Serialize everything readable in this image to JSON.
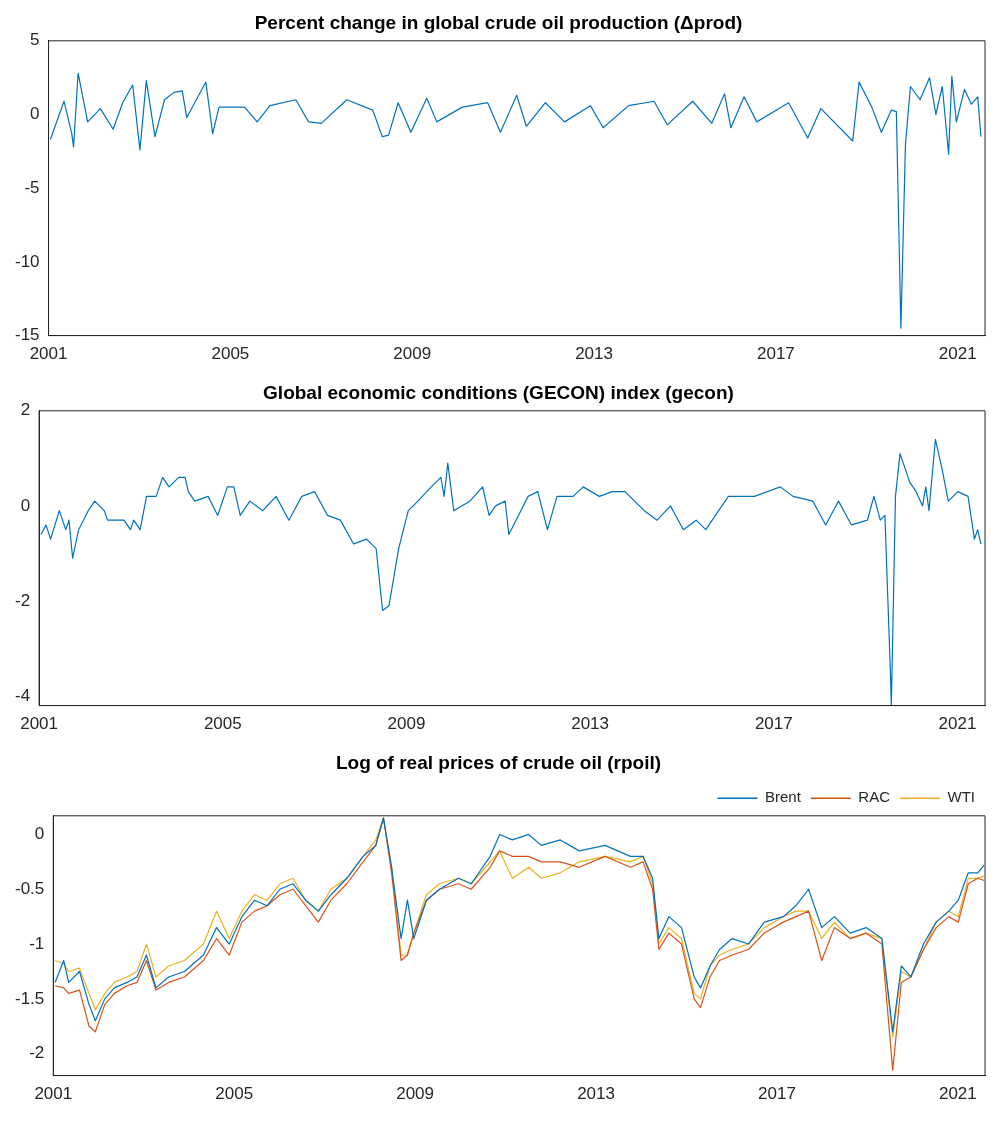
{
  "chart_data": [
    {
      "type": "line",
      "title": "Percent change in global crude oil production (Δprod)",
      "x": [
        2001.04,
        2001.34,
        2001.51,
        2001.55,
        2001.65,
        2001.86,
        2002.14,
        2002.42,
        2002.63,
        2002.85,
        2003.01,
        2003.15,
        2003.34,
        2003.55,
        2003.76,
        2003.94,
        2004.04,
        2004.46,
        2004.61,
        2004.75,
        2005.31,
        2005.59,
        2005.87,
        2006.44,
        2006.72,
        2007.0,
        2007.56,
        2008.13,
        2008.34,
        2008.48,
        2008.69,
        2008.97,
        2009.32,
        2009.54,
        2010.1,
        2010.66,
        2010.94,
        2011.3,
        2011.51,
        2011.93,
        2012.35,
        2012.92,
        2013.2,
        2013.76,
        2014.32,
        2014.61,
        2015.17,
        2015.59,
        2015.87,
        2016.01,
        2016.3,
        2016.58,
        2017.28,
        2017.7,
        2017.99,
        2018.69,
        2018.83,
        2019.11,
        2019.32,
        2019.54,
        2019.65,
        2019.75,
        2019.85,
        2019.96,
        2020.17,
        2020.38,
        2020.52,
        2020.66,
        2020.8,
        2020.87,
        2020.97,
        2021.15,
        2021.3,
        2021.44,
        2021.51
      ],
      "series": [
        {
          "color": "#0072bd",
          "values": [
            -1.7,
            0.9,
            -1.3,
            -2.2,
            2.8,
            -0.5,
            0.4,
            -1.0,
            0.8,
            2.0,
            -2.4,
            2.3,
            -1.5,
            1.0,
            1.5,
            1.6,
            -0.2,
            2.2,
            -1.3,
            0.5,
            0.5,
            -0.5,
            0.6,
            1.0,
            -0.5,
            -0.6,
            1.0,
            0.3,
            -1.5,
            -1.4,
            0.8,
            -1.2,
            1.1,
            -0.5,
            0.5,
            0.8,
            -1.2,
            1.3,
            -0.8,
            0.8,
            -0.5,
            0.6,
            -0.9,
            0.6,
            0.9,
            -0.7,
            0.9,
            -0.6,
            1.4,
            -0.9,
            1.2,
            -0.5,
            0.8,
            -1.6,
            0.4,
            -1.8,
            2.2,
            0.5,
            -1.2,
            0.3,
            0.2,
            -14.5,
            -2.0,
            1.9,
            1.0,
            2.5,
            0.0,
            1.9,
            -2.7,
            2.6,
            -0.5,
            1.7,
            0.7,
            1.2,
            -1.5
          ]
        }
      ],
      "xlim": [
        2001,
        2021.6
      ],
      "xticks": [
        2001,
        2005,
        2009,
        2013,
        2017,
        2021
      ],
      "ylim": [
        -15,
        5
      ],
      "yticks": [
        -15,
        -10,
        -5,
        0,
        5
      ]
    },
    {
      "type": "line",
      "title": "Global economic conditions (GECON) index (gecon)",
      "x": [
        2001.04,
        2001.15,
        2001.25,
        2001.44,
        2001.58,
        2001.65,
        2001.73,
        2001.86,
        2002.07,
        2002.21,
        2002.42,
        2002.49,
        2002.85,
        2002.99,
        2003.06,
        2003.2,
        2003.34,
        2003.55,
        2003.69,
        2003.83,
        2004.04,
        2004.18,
        2004.25,
        2004.39,
        2004.68,
        2004.89,
        2005.1,
        2005.24,
        2005.38,
        2005.59,
        2005.87,
        2006.16,
        2006.44,
        2006.72,
        2007.0,
        2007.28,
        2007.56,
        2007.85,
        2008.13,
        2008.34,
        2008.48,
        2008.62,
        2008.83,
        2009.04,
        2009.25,
        2009.54,
        2009.75,
        2009.82,
        2009.9,
        2010.03,
        2010.38,
        2010.66,
        2010.8,
        2010.94,
        2011.15,
        2011.23,
        2011.65,
        2011.86,
        2012.07,
        2012.28,
        2012.63,
        2012.85,
        2013.2,
        2013.48,
        2013.76,
        2014.18,
        2014.46,
        2014.75,
        2015.03,
        2015.31,
        2015.52,
        2015.8,
        2016.01,
        2016.58,
        2017.14,
        2017.42,
        2017.85,
        2018.13,
        2018.41,
        2018.69,
        2019.04,
        2019.18,
        2019.32,
        2019.42,
        2019.54,
        2019.56,
        2019.65,
        2019.75,
        2019.96,
        2020.1,
        2020.24,
        2020.31,
        2020.38,
        2020.52,
        2020.66,
        2020.8,
        2021.01,
        2021.23,
        2021.37,
        2021.44,
        2021.51
      ],
      "series": [
        {
          "color": "#0072bd",
          "values": [
            -0.6,
            -0.4,
            -0.7,
            -0.1,
            -0.5,
            -0.3,
            -1.1,
            -0.5,
            -0.1,
            0.1,
            -0.1,
            -0.3,
            -0.3,
            -0.5,
            -0.3,
            -0.5,
            0.2,
            0.2,
            0.6,
            0.4,
            0.6,
            0.6,
            0.3,
            0.1,
            0.2,
            -0.2,
            0.4,
            0.4,
            -0.2,
            0.1,
            -0.1,
            0.2,
            -0.3,
            0.2,
            0.3,
            -0.2,
            -0.3,
            -0.8,
            -0.7,
            -0.9,
            -2.2,
            -2.1,
            -0.9,
            -0.1,
            0.1,
            0.4,
            0.6,
            0.2,
            0.9,
            -0.1,
            0.1,
            0.4,
            -0.2,
            0.0,
            0.1,
            -0.6,
            0.2,
            0.3,
            -0.5,
            0.2,
            0.2,
            0.4,
            0.2,
            0.3,
            0.3,
            -0.1,
            -0.3,
            0.0,
            -0.5,
            -0.3,
            -0.5,
            -0.1,
            0.2,
            0.2,
            0.4,
            0.2,
            0.1,
            -0.4,
            0.1,
            -0.4,
            -0.3,
            0.2,
            -0.3,
            -0.2,
            -3.5,
            -4.2,
            0.2,
            1.1,
            0.5,
            0.3,
            0.0,
            0.4,
            -0.1,
            1.4,
            0.8,
            0.1,
            0.3,
            0.2,
            -0.7,
            -0.5,
            -0.8
          ]
        }
      ],
      "xlim": [
        2001,
        2021.6
      ],
      "xticks": [
        2001,
        2005,
        2009,
        2013,
        2017,
        2021
      ],
      "ylim": [
        -4.2,
        2
      ],
      "yticks": [
        -4,
        -2,
        0,
        2
      ]
    },
    {
      "type": "line",
      "title": "Log of real prices of crude oil (rpoil)",
      "legend": "top right",
      "x": [
        2001.04,
        2001.23,
        2001.34,
        2001.58,
        2001.79,
        2001.93,
        2002.14,
        2002.35,
        2002.63,
        2002.85,
        2003.06,
        2003.27,
        2003.55,
        2003.9,
        2004.32,
        2004.61,
        2004.89,
        2005.17,
        2005.45,
        2005.73,
        2006.01,
        2006.3,
        2006.58,
        2006.86,
        2007.14,
        2007.49,
        2007.85,
        2008.13,
        2008.3,
        2008.48,
        2008.69,
        2008.83,
        2008.97,
        2009.25,
        2009.54,
        2009.96,
        2010.24,
        2010.66,
        2010.87,
        2011.15,
        2011.51,
        2011.79,
        2012.21,
        2012.63,
        2013.2,
        2013.76,
        2014.04,
        2014.25,
        2014.39,
        2014.61,
        2014.89,
        2015.17,
        2015.31,
        2015.52,
        2015.73,
        2016.01,
        2016.37,
        2016.72,
        2017.14,
        2017.42,
        2017.7,
        2017.99,
        2018.27,
        2018.62,
        2018.97,
        2019.32,
        2019.56,
        2019.75,
        2019.96,
        2020.24,
        2020.52,
        2020.8,
        2021.01,
        2021.23,
        2021.44,
        2021.58
      ],
      "series": [
        {
          "name": "Brent",
          "color": "#0072bd",
          "values": [
            -1.35,
            -1.15,
            -1.35,
            -1.25,
            -1.55,
            -1.7,
            -1.5,
            -1.4,
            -1.35,
            -1.3,
            -1.1,
            -1.4,
            -1.3,
            -1.25,
            -1.1,
            -0.85,
            -1.0,
            -0.75,
            -0.6,
            -0.65,
            -0.5,
            -0.45,
            -0.6,
            -0.7,
            -0.55,
            -0.4,
            -0.2,
            -0.1,
            0.15,
            -0.3,
            -0.95,
            -0.6,
            -0.95,
            -0.6,
            -0.5,
            -0.4,
            -0.45,
            -0.2,
            0.0,
            -0.05,
            0.0,
            -0.1,
            -0.05,
            -0.15,
            -0.1,
            -0.2,
            -0.2,
            -0.4,
            -0.95,
            -0.75,
            -0.85,
            -1.3,
            -1.4,
            -1.2,
            -1.05,
            -0.95,
            -1.0,
            -0.8,
            -0.75,
            -0.65,
            -0.5,
            -0.85,
            -0.75,
            -0.9,
            -0.85,
            -0.95,
            -1.8,
            -1.2,
            -1.3,
            -1.0,
            -0.8,
            -0.7,
            -0.6,
            -0.35,
            -0.35,
            -0.28
          ]
        },
        {
          "name": "RAC",
          "color": "#d95319",
          "values": [
            -1.38,
            -1.4,
            -1.45,
            -1.42,
            -1.75,
            -1.8,
            -1.55,
            -1.45,
            -1.38,
            -1.35,
            -1.15,
            -1.42,
            -1.35,
            -1.3,
            -1.15,
            -0.95,
            -1.1,
            -0.8,
            -0.7,
            -0.65,
            -0.55,
            -0.5,
            -0.65,
            -0.8,
            -0.6,
            -0.45,
            -0.25,
            -0.1,
            0.15,
            -0.35,
            -1.15,
            -1.1,
            -0.9,
            -0.6,
            -0.5,
            -0.45,
            -0.5,
            -0.3,
            -0.15,
            -0.2,
            -0.2,
            -0.25,
            -0.25,
            -0.3,
            -0.2,
            -0.3,
            -0.25,
            -0.5,
            -1.05,
            -0.9,
            -1.0,
            -1.5,
            -1.58,
            -1.3,
            -1.15,
            -1.1,
            -1.05,
            -0.9,
            -0.8,
            -0.75,
            -0.7,
            -1.15,
            -0.85,
            -0.95,
            -0.9,
            -1.0,
            -2.15,
            -1.35,
            -1.3,
            -1.05,
            -0.85,
            -0.75,
            -0.8,
            -0.45,
            -0.4,
            -0.42
          ]
        },
        {
          "name": "WTI",
          "color": "#edb120",
          "values": [
            -1.15,
            -1.18,
            -1.25,
            -1.22,
            -1.45,
            -1.6,
            -1.45,
            -1.35,
            -1.3,
            -1.25,
            -1.0,
            -1.3,
            -1.2,
            -1.15,
            -1.0,
            -0.7,
            -0.95,
            -0.7,
            -0.55,
            -0.6,
            -0.45,
            -0.4,
            -0.6,
            -0.7,
            -0.5,
            -0.4,
            -0.2,
            -0.05,
            0.15,
            -0.3,
            -1.1,
            -1.1,
            -0.9,
            -0.55,
            -0.45,
            -0.4,
            -0.45,
            -0.25,
            -0.15,
            -0.4,
            -0.3,
            -0.4,
            -0.35,
            -0.25,
            -0.2,
            -0.25,
            -0.2,
            -0.45,
            -1.0,
            -0.85,
            -0.95,
            -1.45,
            -1.5,
            -1.2,
            -1.1,
            -1.05,
            -1.0,
            -0.85,
            -0.75,
            -0.7,
            -0.7,
            -0.95,
            -0.8,
            -0.95,
            -0.9,
            -0.95,
            -1.85,
            -1.25,
            -1.3,
            -1.05,
            -0.8,
            -0.7,
            -0.75,
            -0.4,
            -0.4,
            -0.38
          ]
        }
      ],
      "xlim": [
        2001,
        2021.6
      ],
      "xticks": [
        2001,
        2005,
        2009,
        2013,
        2017,
        2021
      ],
      "ylim": [
        -2.2,
        0.17
      ],
      "yticks": [
        -2,
        -1.5,
        -1,
        -0.5,
        0
      ]
    }
  ]
}
